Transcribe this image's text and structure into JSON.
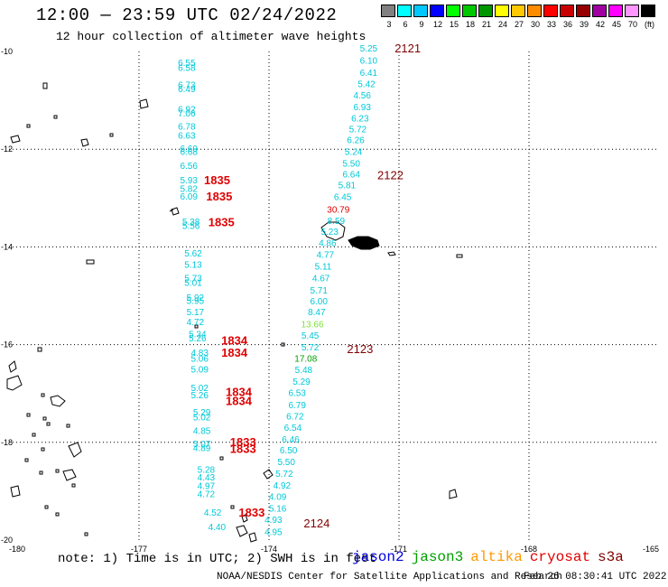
{
  "header": {
    "title": "12:00 — 23:59 UTC 02/24/2022",
    "subtitle": "12 hour collection of altimeter wave heights"
  },
  "legend": {
    "unit": "(ft)",
    "bins": [
      {
        "label": "3",
        "color": "#808080"
      },
      {
        "label": "6",
        "color": "#00ffff"
      },
      {
        "label": "9",
        "color": "#00c8ff"
      },
      {
        "label": "12",
        "color": "#0000ff"
      },
      {
        "label": "15",
        "color": "#00ff00"
      },
      {
        "label": "18",
        "color": "#00c800"
      },
      {
        "label": "21",
        "color": "#009600"
      },
      {
        "label": "24",
        "color": "#ffff00"
      },
      {
        "label": "27",
        "color": "#ffc800"
      },
      {
        "label": "30",
        "color": "#ff8c00"
      },
      {
        "label": "33",
        "color": "#ff0000"
      },
      {
        "label": "36",
        "color": "#c80000"
      },
      {
        "label": "39",
        "color": "#960000"
      },
      {
        "label": "42",
        "color": "#a000a0"
      },
      {
        "label": "45",
        "color": "#ff00ff"
      },
      {
        "label": "70",
        "color": "#ff96ff"
      },
      {
        "label": "",
        "color": "#000000"
      }
    ]
  },
  "axes": {
    "lon_ticks": [
      "-180",
      "-177",
      "-174",
      "-171",
      "-168",
      "-165"
    ],
    "lat_ticks": [
      "-10",
      "-12",
      "-14",
      "-16",
      "-18",
      "-20"
    ]
  },
  "colors": {
    "wave_cyan": "#00c8d8",
    "wave_green_light": "#80e040",
    "wave_green": "#00a000",
    "wave_red": "#e00000",
    "time_red": "#e00000",
    "time_dark": "#800000",
    "land": "#000000"
  },
  "tracks": {
    "track1": [
      {
        "v": "6.55",
        "lon": -175.9,
        "lat": -10.3
      },
      {
        "v": "6.58",
        "lon": -175.9,
        "lat": -10.4
      },
      {
        "v": "6.73",
        "lon": -175.9,
        "lat": -10.75
      },
      {
        "v": "6.49",
        "lon": -175.9,
        "lat": -10.83
      },
      {
        "v": "6.92",
        "lon": -175.9,
        "lat": -11.25
      },
      {
        "v": "7.06",
        "lon": -175.9,
        "lat": -11.33
      },
      {
        "v": "6.78",
        "lon": -175.9,
        "lat": -11.6
      },
      {
        "v": "6.63",
        "lon": -175.9,
        "lat": -11.78
      },
      {
        "v": "6.69",
        "lon": -175.85,
        "lat": -12.05
      },
      {
        "v": "6.68",
        "lon": -175.85,
        "lat": -12.12
      },
      {
        "v": "6.56",
        "lon": -175.85,
        "lat": -12.4
      },
      {
        "v": "5.93",
        "lon": -175.85,
        "lat": -12.7
      },
      {
        "v": "5.82",
        "lon": -175.85,
        "lat": -12.87
      },
      {
        "v": "6.09",
        "lon": -175.85,
        "lat": -13.03
      },
      {
        "v": "5.38",
        "lon": -175.8,
        "lat": -13.55
      },
      {
        "v": "5.56",
        "lon": -175.8,
        "lat": -13.63
      },
      {
        "v": "5.62",
        "lon": -175.75,
        "lat": -14.2
      },
      {
        "v": "5.13",
        "lon": -175.75,
        "lat": -14.43
      },
      {
        "v": "5.73",
        "lon": -175.75,
        "lat": -14.7
      },
      {
        "v": "5.01",
        "lon": -175.75,
        "lat": -14.8
      },
      {
        "v": "5.92",
        "lon": -175.7,
        "lat": -15.1
      },
      {
        "v": "5.95",
        "lon": -175.7,
        "lat": -15.17
      },
      {
        "v": "5.17",
        "lon": -175.7,
        "lat": -15.4
      },
      {
        "v": "4.72",
        "lon": -175.7,
        "lat": -15.6
      },
      {
        "v": "5.34",
        "lon": -175.65,
        "lat": -15.85
      },
      {
        "v": "5.26",
        "lon": -175.65,
        "lat": -15.93
      },
      {
        "v": "4.83",
        "lon": -175.6,
        "lat": -16.23
      },
      {
        "v": "5.06",
        "lon": -175.6,
        "lat": -16.35
      },
      {
        "v": "5.09",
        "lon": -175.6,
        "lat": -16.57
      },
      {
        "v": "5.02",
        "lon": -175.6,
        "lat": -16.95
      },
      {
        "v": "5.26",
        "lon": -175.6,
        "lat": -17.1
      },
      {
        "v": "5.29",
        "lon": -175.55,
        "lat": -17.45
      },
      {
        "v": "5.02",
        "lon": -175.55,
        "lat": -17.55
      },
      {
        "v": "4.85",
        "lon": -175.55,
        "lat": -17.83
      },
      {
        "v": "5.07",
        "lon": -175.55,
        "lat": -18.1
      },
      {
        "v": "4.89",
        "lon": -175.55,
        "lat": -18.18
      },
      {
        "v": "5.28",
        "lon": -175.45,
        "lat": -18.62
      },
      {
        "v": "4.43",
        "lon": -175.45,
        "lat": -18.78
      },
      {
        "v": "4.97",
        "lon": -175.45,
        "lat": -18.96
      },
      {
        "v": "4.72",
        "lon": -175.45,
        "lat": -19.12
      },
      {
        "v": "4.52",
        "lon": -175.3,
        "lat": -19.5
      },
      {
        "v": "4.40",
        "lon": -175.2,
        "lat": -19.8
      }
    ],
    "track2": [
      {
        "v": "5.25",
        "lon": -171.7,
        "lat": -10.0
      },
      {
        "v": "6.10",
        "lon": -171.7,
        "lat": -10.25
      },
      {
        "v": "6.41",
        "lon": -171.7,
        "lat": -10.5
      },
      {
        "v": "5.42",
        "lon": -171.75,
        "lat": -10.73
      },
      {
        "v": "4.56",
        "lon": -171.85,
        "lat": -10.96
      },
      {
        "v": "6.93",
        "lon": -171.85,
        "lat": -11.2
      },
      {
        "v": "6.23",
        "lon": -171.9,
        "lat": -11.43
      },
      {
        "v": "5.72",
        "lon": -171.95,
        "lat": -11.65
      },
      {
        "v": "6.26",
        "lon": -172.0,
        "lat": -11.88
      },
      {
        "v": "5.24",
        "lon": -172.05,
        "lat": -12.12
      },
      {
        "v": "5.50",
        "lon": -172.1,
        "lat": -12.36
      },
      {
        "v": "6.64",
        "lon": -172.1,
        "lat": -12.58
      },
      {
        "v": "5.81",
        "lon": -172.2,
        "lat": -12.8
      },
      {
        "v": "6.45",
        "lon": -172.3,
        "lat": -13.04
      },
      {
        "v": "30.79",
        "lon": -172.4,
        "lat": -13.3
      },
      {
        "v": "8.59",
        "lon": -172.45,
        "lat": -13.53
      },
      {
        "v": "5.23",
        "lon": -172.6,
        "lat": -13.75
      },
      {
        "v": "4.86",
        "lon": -172.65,
        "lat": -13.98
      },
      {
        "v": "4.77",
        "lon": -172.7,
        "lat": -14.22
      },
      {
        "v": "5.11",
        "lon": -172.75,
        "lat": -14.46
      },
      {
        "v": "4.67",
        "lon": -172.8,
        "lat": -14.7
      },
      {
        "v": "5.71",
        "lon": -172.85,
        "lat": -14.95
      },
      {
        "v": "6.00",
        "lon": -172.85,
        "lat": -15.18
      },
      {
        "v": "8.47",
        "lon": -172.9,
        "lat": -15.4
      },
      {
        "v": "13.66",
        "lon": -173.0,
        "lat": -15.65
      },
      {
        "v": "5.45",
        "lon": -173.05,
        "lat": -15.88
      },
      {
        "v": "5.72",
        "lon": -173.05,
        "lat": -16.12
      },
      {
        "v": "17.08",
        "lon": -173.15,
        "lat": -16.35
      },
      {
        "v": "5.48",
        "lon": -173.2,
        "lat": -16.58
      },
      {
        "v": "5.29",
        "lon": -173.25,
        "lat": -16.82
      },
      {
        "v": "6.53",
        "lon": -173.35,
        "lat": -17.05
      },
      {
        "v": "6.79",
        "lon": -173.35,
        "lat": -17.3
      },
      {
        "v": "6.72",
        "lon": -173.4,
        "lat": -17.53
      },
      {
        "v": "6.54",
        "lon": -173.45,
        "lat": -17.76
      },
      {
        "v": "6.46",
        "lon": -173.5,
        "lat": -18.0
      },
      {
        "v": "6.50",
        "lon": -173.55,
        "lat": -18.23
      },
      {
        "v": "5.50",
        "lon": -173.6,
        "lat": -18.47
      },
      {
        "v": "5.72",
        "lon": -173.65,
        "lat": -18.71
      },
      {
        "v": "4.92",
        "lon": -173.7,
        "lat": -18.95
      },
      {
        "v": "4.09",
        "lon": -173.8,
        "lat": -19.18
      },
      {
        "v": "5.16",
        "lon": -173.8,
        "lat": -19.42
      },
      {
        "v": "4.93",
        "lon": -173.9,
        "lat": -19.65
      },
      {
        "v": "4.95",
        "lon": -173.9,
        "lat": -19.9
      }
    ]
  },
  "times": [
    {
      "t": "1835",
      "lon": -175.5,
      "lat": -12.72,
      "kind": "red"
    },
    {
      "t": "1835",
      "lon": -175.45,
      "lat": -13.05,
      "kind": "red"
    },
    {
      "t": "1835",
      "lon": -175.4,
      "lat": -13.58,
      "kind": "red"
    },
    {
      "t": "1834",
      "lon": -175.1,
      "lat": -16.0,
      "kind": "red"
    },
    {
      "t": "1834",
      "lon": -175.1,
      "lat": -16.25,
      "kind": "red"
    },
    {
      "t": "1834",
      "lon": -175.0,
      "lat": -17.05,
      "kind": "red"
    },
    {
      "t": "1834",
      "lon": -175.0,
      "lat": -17.24,
      "kind": "red"
    },
    {
      "t": "1833",
      "lon": -174.9,
      "lat": -18.08,
      "kind": "red"
    },
    {
      "t": "1833",
      "lon": -174.9,
      "lat": -18.22,
      "kind": "red"
    },
    {
      "t": "1833",
      "lon": -174.7,
      "lat": -19.52,
      "kind": "red"
    },
    {
      "t": "2121",
      "lon": -171.1,
      "lat": -10.02,
      "kind": "dark"
    },
    {
      "t": "2122",
      "lon": -171.5,
      "lat": -12.62,
      "kind": "dark"
    },
    {
      "t": "2123",
      "lon": -172.2,
      "lat": -16.17,
      "kind": "dark"
    },
    {
      "t": "2124",
      "lon": -173.2,
      "lat": -19.74,
      "kind": "dark"
    }
  ],
  "footer": {
    "note": "note: 1) Time is in UTC; 2) SWH is in feet",
    "satellites": [
      {
        "name": "jason2",
        "color": "#0000e0"
      },
      {
        "name": "jason3",
        "color": "#00a000"
      },
      {
        "name": "altika",
        "color": "#ff9900"
      },
      {
        "name": "cryosat",
        "color": "#e00000"
      },
      {
        "name": "s3a",
        "color": "#800000"
      }
    ],
    "credit": "NOAA/NESDIS Center for Satellite Applications and Research",
    "timestamp": "Feb 26 08:30:41 UTC 2022"
  }
}
